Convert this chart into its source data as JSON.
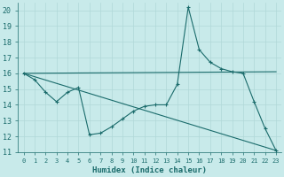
{
  "xlabel": "Humidex (Indice chaleur)",
  "ylabel": "",
  "bg_color": "#c8eaea",
  "line_color": "#1a6b6b",
  "grid_color": "#b0d8d8",
  "xlim": [
    -0.5,
    23.5
  ],
  "ylim": [
    11,
    20.5
  ],
  "yticks": [
    11,
    12,
    13,
    14,
    15,
    16,
    17,
    18,
    19,
    20
  ],
  "xtick_labels": [
    "0",
    "1",
    "2",
    "3",
    "4",
    "5",
    "6",
    "7",
    "8",
    "9",
    "10",
    "11",
    "12",
    "13",
    "14",
    "15",
    "16",
    "17",
    "18",
    "19",
    "20",
    "21",
    "22",
    "23"
  ],
  "xticks": [
    0,
    1,
    2,
    3,
    4,
    5,
    6,
    7,
    8,
    9,
    10,
    11,
    12,
    13,
    14,
    15,
    16,
    17,
    18,
    19,
    20,
    21,
    22,
    23
  ],
  "curve1_x": [
    0,
    1,
    2,
    3,
    4,
    5,
    6,
    7,
    8,
    9,
    10,
    11,
    12,
    13,
    14,
    15,
    16,
    17,
    18,
    19,
    20,
    21,
    22,
    23
  ],
  "curve1_y": [
    16.0,
    15.6,
    14.8,
    14.2,
    14.8,
    15.1,
    12.1,
    12.2,
    12.6,
    13.1,
    13.6,
    13.9,
    14.0,
    14.0,
    15.3,
    20.2,
    17.5,
    16.7,
    16.3,
    16.1,
    16.0,
    14.2,
    12.5,
    11.1
  ],
  "curve2_x": [
    0,
    23
  ],
  "curve2_y": [
    16.0,
    16.1
  ],
  "curve3_x": [
    0,
    23
  ],
  "curve3_y": [
    16.0,
    11.1
  ]
}
